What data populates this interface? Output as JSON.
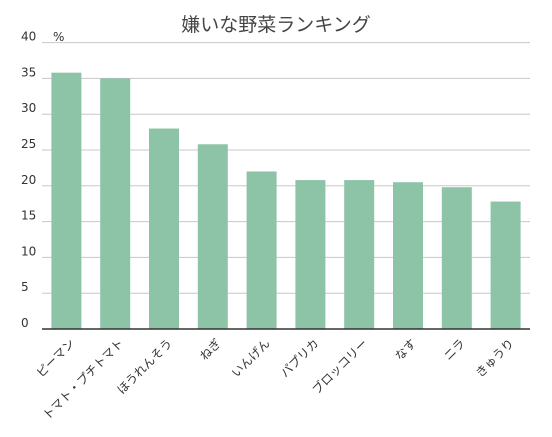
{
  "chart_data": {
    "type": "bar",
    "title": "嫌いな野菜ランキング",
    "unit_label": "%",
    "categories": [
      "ピーマン",
      "トマト・プチトマト",
      "ほうれんそう",
      "ねぎ",
      "いんげん",
      "パプリカ",
      "ブロッコリー",
      "なす",
      "ニラ",
      "きゅうり"
    ],
    "values": [
      35.8,
      35.0,
      28.0,
      25.8,
      22.0,
      20.8,
      20.8,
      20.5,
      19.8,
      17.8
    ],
    "ylim": [
      0,
      40
    ],
    "yticks": [
      "0",
      "5",
      "10",
      "15",
      "20",
      "25",
      "30",
      "35",
      "40"
    ],
    "grid": true,
    "bar_color": "#8dc3a7",
    "grid_color": "#c8c8c8",
    "axis_color": "#333333"
  }
}
